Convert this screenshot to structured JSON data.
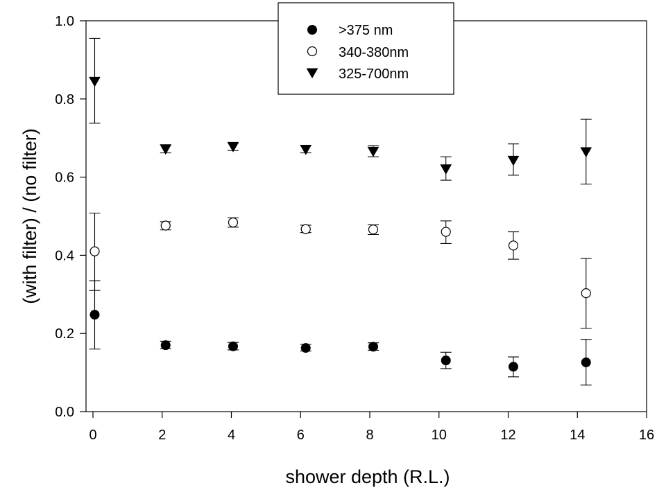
{
  "chart_data": {
    "type": "scatter",
    "xlabel": "shower depth (R.L.)",
    "ylabel": "(with filter) / (no filter)",
    "xlim": [
      0,
      16
    ],
    "ylim": [
      0.0,
      1.0
    ],
    "xticks": [
      0,
      2,
      4,
      6,
      8,
      10,
      12,
      14,
      16
    ],
    "yticks": [
      0.0,
      0.2,
      0.4,
      0.6,
      0.8,
      1.0
    ],
    "xtick_labels": [
      "0",
      "2",
      "4",
      "6",
      "8",
      "10",
      "12",
      "14",
      "16"
    ],
    "ytick_labels": [
      "0.0",
      "0.2",
      "0.4",
      "0.6",
      "0.8",
      "1.0"
    ],
    "grid": false,
    "legend_position": "top-center",
    "series": [
      {
        "name": ">375 nm",
        "marker": "filled-circle",
        "color": "#000000",
        "x": [
          0.05,
          2.1,
          4.05,
          6.15,
          8.1,
          10.2,
          12.15,
          14.25
        ],
        "y": [
          0.248,
          0.17,
          0.167,
          0.163,
          0.166,
          0.131,
          0.115,
          0.126
        ],
        "err_low": [
          0.16,
          0.161,
          0.158,
          0.155,
          0.157,
          0.11,
          0.089,
          0.068
        ],
        "err_high": [
          0.335,
          0.18,
          0.177,
          0.172,
          0.176,
          0.152,
          0.14,
          0.185
        ]
      },
      {
        "name": "340-380nm",
        "marker": "open-circle",
        "color": "#000000",
        "x": [
          0.05,
          2.1,
          4.05,
          6.15,
          8.1,
          10.2,
          12.15,
          14.25
        ],
        "y": [
          0.41,
          0.476,
          0.484,
          0.467,
          0.466,
          0.46,
          0.425,
          0.303
        ],
        "err_low": [
          0.31,
          0.465,
          0.472,
          0.458,
          0.453,
          0.43,
          0.39,
          0.213
        ],
        "err_high": [
          0.508,
          0.486,
          0.496,
          0.477,
          0.478,
          0.488,
          0.46,
          0.392
        ]
      },
      {
        "name": "325-700nm",
        "marker": "filled-triangle-down",
        "color": "#000000",
        "x": [
          0.05,
          2.1,
          4.05,
          6.15,
          8.1,
          10.2,
          12.15,
          14.25
        ],
        "y": [
          0.845,
          0.672,
          0.678,
          0.671,
          0.666,
          0.621,
          0.643,
          0.665
        ],
        "err_low": [
          0.738,
          0.662,
          0.668,
          0.662,
          0.652,
          0.592,
          0.605,
          0.582
        ],
        "err_high": [
          0.955,
          0.683,
          0.689,
          0.681,
          0.68,
          0.652,
          0.685,
          0.748
        ]
      }
    ]
  }
}
